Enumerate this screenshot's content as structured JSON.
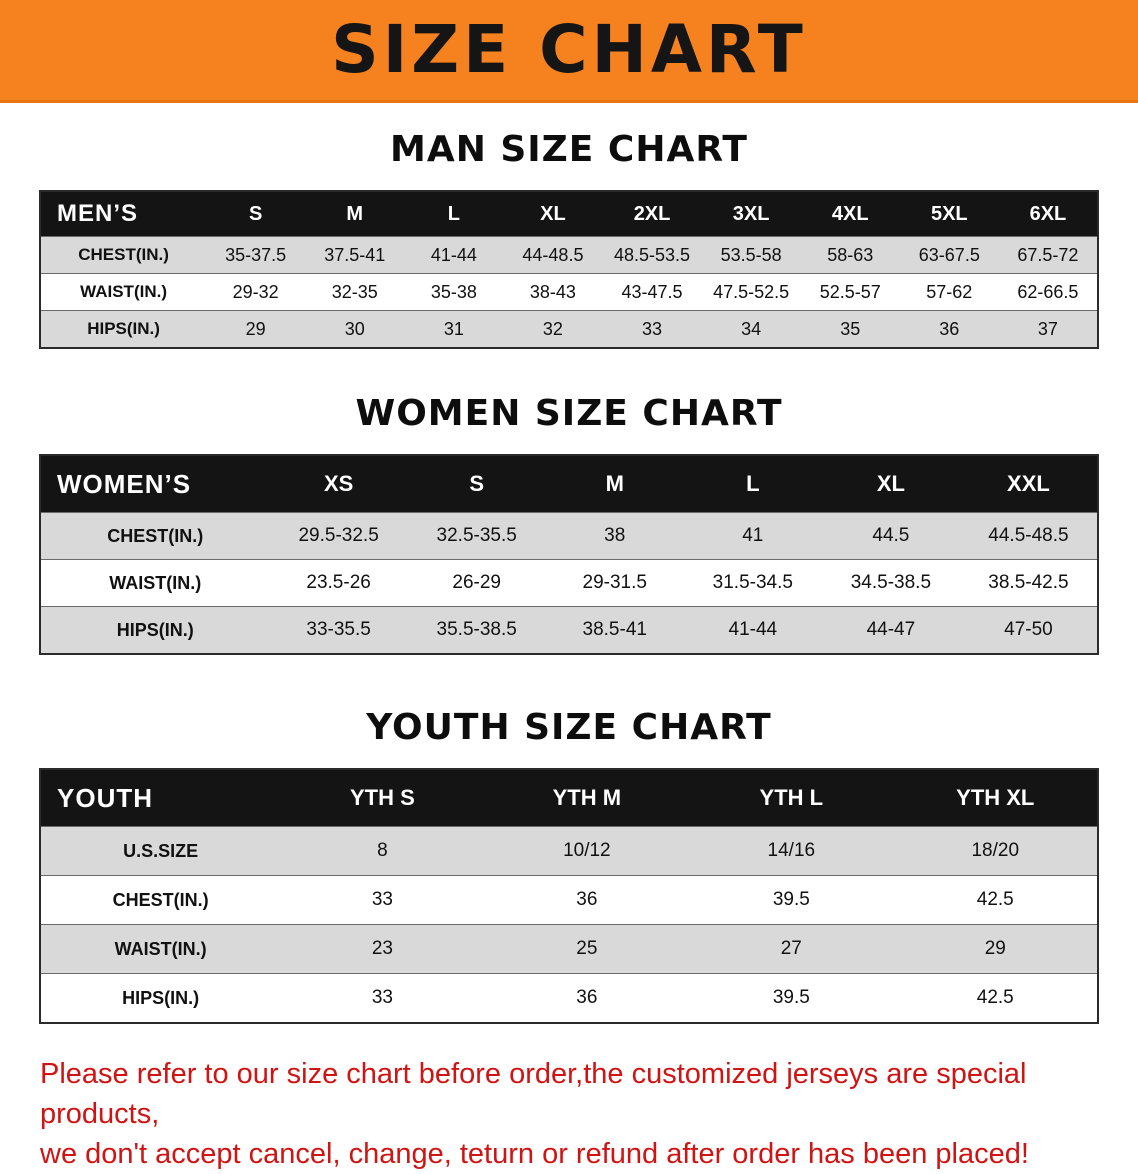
{
  "banner": {
    "title": "SIZE CHART",
    "bg_color": "#f6821f",
    "text_color": "#151515"
  },
  "colors": {
    "table_header_bg": "#141414",
    "table_header_text": "#ffffff",
    "row_alt_bg": "#d9d9d9",
    "note_text": "#d01414"
  },
  "sections": [
    {
      "heading": "MAN SIZE CHART",
      "table": {
        "label": "MEN’S",
        "columns": [
          "S",
          "M",
          "L",
          "XL",
          "2XL",
          "3XL",
          "4XL",
          "5XL",
          "6XL"
        ],
        "rows": [
          {
            "label": "CHEST(IN.)",
            "values": [
              "35-37.5",
              "37.5-41",
              "41-44",
              "44-48.5",
              "48.5-53.5",
              "53.5-58",
              "58-63",
              "63-67.5",
              "67.5-72"
            ]
          },
          {
            "label": "WAIST(IN.)",
            "values": [
              "29-32",
              "32-35",
              "35-38",
              "38-43",
              "43-47.5",
              "47.5-52.5",
              "52.5-57",
              "57-62",
              "62-66.5"
            ]
          },
          {
            "label": "HIPS(IN.)",
            "values": [
              "29",
              "30",
              "31",
              "32",
              "33",
              "34",
              "35",
              "36",
              "37"
            ]
          }
        ]
      }
    },
    {
      "heading": "WOMEN SIZE CHART",
      "table": {
        "label": "WOMEN’S",
        "columns": [
          "XS",
          "S",
          "M",
          "L",
          "XL",
          "XXL"
        ],
        "rows": [
          {
            "label": "CHEST(IN.)",
            "values": [
              "29.5-32.5",
              "32.5-35.5",
              "38",
              "41",
              "44.5",
              "44.5-48.5"
            ]
          },
          {
            "label": "WAIST(IN.)",
            "values": [
              "23.5-26",
              "26-29",
              "29-31.5",
              "31.5-34.5",
              "34.5-38.5",
              "38.5-42.5"
            ]
          },
          {
            "label": "HIPS(IN.)",
            "values": [
              "33-35.5",
              "35.5-38.5",
              "38.5-41",
              "41-44",
              "44-47",
              "47-50"
            ]
          }
        ]
      }
    },
    {
      "heading": "YOUTH SIZE CHART",
      "table": {
        "label": "YOUTH",
        "columns": [
          "YTH S",
          "YTH M",
          "YTH L",
          "YTH XL"
        ],
        "rows": [
          {
            "label": "U.S.SIZE",
            "values": [
              "8",
              "10/12",
              "14/16",
              "18/20"
            ]
          },
          {
            "label": "CHEST(IN.)",
            "values": [
              "33",
              "36",
              "39.5",
              "42.5"
            ]
          },
          {
            "label": "WAIST(IN.)",
            "values": [
              "23",
              "25",
              "27",
              "29"
            ]
          },
          {
            "label": "HIPS(IN.)",
            "values": [
              "33",
              "36",
              "39.5",
              "42.5"
            ]
          }
        ]
      }
    }
  ],
  "footer_note": {
    "lines": [
      "Please refer to our size chart before order,the customized jerseys are special products,",
      "we don't accept cancel, change, teturn or refund after order has been placed!"
    ]
  }
}
